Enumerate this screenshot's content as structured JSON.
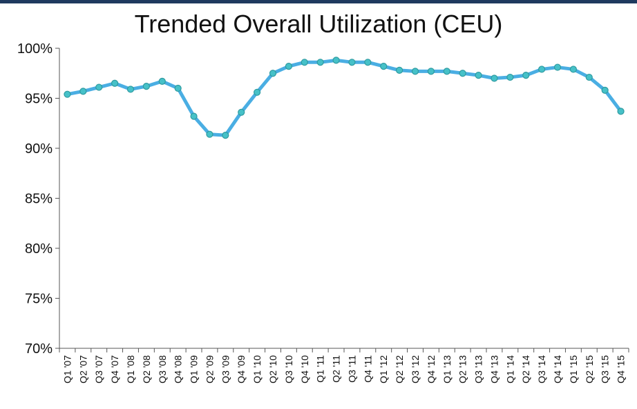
{
  "colors": {
    "line": "#4aaee3",
    "marker_fill": "#46c1c8",
    "marker_stroke": "#2e9aa0",
    "top_bar": "#1f3a5f",
    "axis": "#555555"
  },
  "chart_data": {
    "type": "line",
    "title": "Trended Overall Utilization (CEU)",
    "xlabel": "",
    "ylabel": "",
    "ylim": [
      70,
      100
    ],
    "yticks": [
      "70%",
      "75%",
      "80%",
      "85%",
      "90%",
      "95%",
      "100%"
    ],
    "ytick_values": [
      70,
      75,
      80,
      85,
      90,
      95,
      100
    ],
    "grid": false,
    "categories": [
      "Q1 '07",
      "Q2 '07",
      "Q3 '07",
      "Q4 '07",
      "Q1 '08",
      "Q2 '08",
      "Q3 '08",
      "Q4 '08",
      "Q1 '09",
      "Q2 '09",
      "Q3 '09",
      "Q4 '09",
      "Q1 '10",
      "Q2 '10",
      "Q3 '10",
      "Q4 '10",
      "Q1 '11",
      "Q2 '11",
      "Q3 '11",
      "Q4 '11",
      "Q1 '12",
      "Q2 '12",
      "Q3 '12",
      "Q4 '12",
      "Q1 '13",
      "Q2 '13",
      "Q3 '13",
      "Q4 '13",
      "Q1 '14",
      "Q2 '14",
      "Q3 '14",
      "Q4 '14",
      "Q1 '15",
      "Q2 '15",
      "Q3 '15",
      "Q4 '15"
    ],
    "series": [
      {
        "values": [
          95.4,
          95.7,
          96.1,
          96.5,
          95.9,
          96.2,
          96.7,
          96.0,
          93.2,
          91.4,
          91.3,
          93.6,
          95.6,
          97.5,
          98.2,
          98.6,
          98.6,
          98.8,
          98.6,
          98.6,
          98.2,
          97.8,
          97.7,
          97.7,
          97.7,
          97.5,
          97.3,
          97.0,
          97.1,
          97.3,
          97.9,
          98.1,
          97.9,
          97.1,
          95.8,
          93.7
        ]
      }
    ]
  }
}
